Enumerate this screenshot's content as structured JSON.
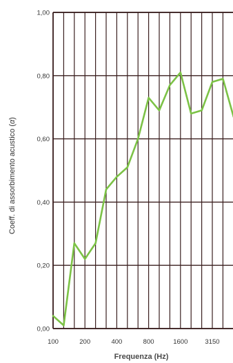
{
  "chart_data": {
    "type": "line",
    "xlabel": "Frequenza (Hz)",
    "ylabel": "Coeff. di assorbimento acustico (",
    "ylabel_symbol": "α",
    "ylabel_close": ")",
    "ylim": [
      0,
      1
    ],
    "y_ticks": [
      "0,00",
      "0,20",
      "0,40",
      "0,60",
      "0,80",
      "1,00"
    ],
    "x_bands": [
      100,
      125,
      160,
      200,
      250,
      315,
      400,
      500,
      630,
      800,
      1000,
      1250,
      1600,
      2000,
      2500,
      3150,
      4000,
      5000
    ],
    "x_tick_labels": [
      {
        "band": 100,
        "label": "100"
      },
      {
        "band": 200,
        "label": "200"
      },
      {
        "band": 400,
        "label": "400"
      },
      {
        "band": 800,
        "label": "800"
      },
      {
        "band": 1600,
        "label": "1600"
      },
      {
        "band": 3150,
        "label": "3150"
      }
    ],
    "grid": true,
    "line_color": "#7cc246",
    "grid_color": "#3a1f1f",
    "series": [
      {
        "x": [
          100,
          125,
          160,
          200,
          250,
          315,
          400,
          500,
          630,
          800,
          1000,
          1250,
          1600,
          2000,
          2500,
          3150,
          4000,
          5000
        ],
        "values": [
          0.04,
          0.01,
          0.27,
          0.22,
          0.27,
          0.44,
          0.48,
          0.51,
          0.6,
          0.73,
          0.69,
          0.77,
          0.81,
          0.68,
          0.69,
          0.78,
          0.79,
          0.67
        ]
      }
    ]
  }
}
